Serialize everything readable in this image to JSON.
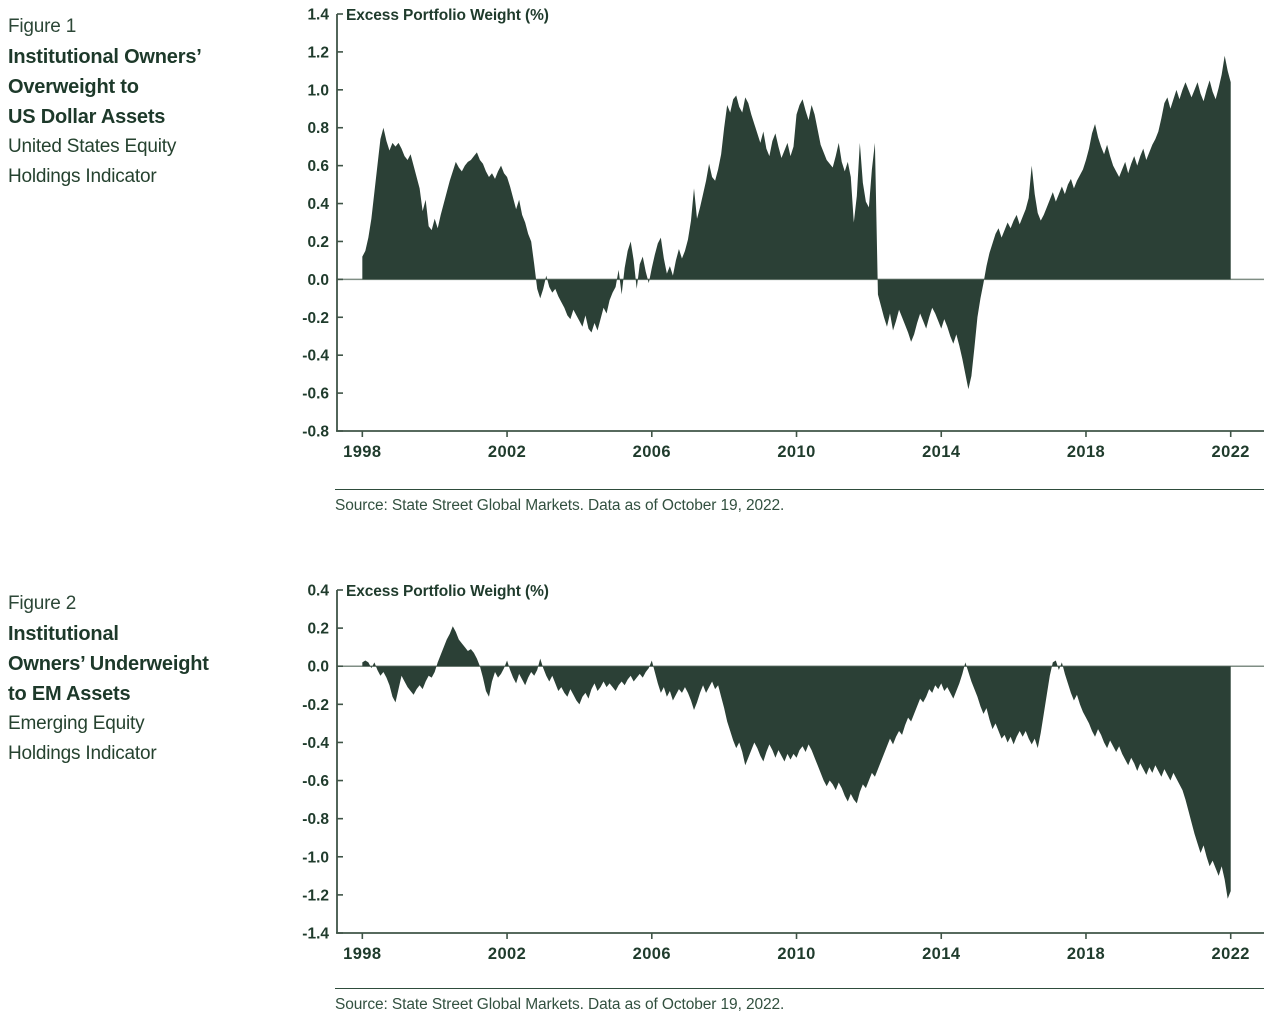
{
  "colors": {
    "ink": "#1f3b2c",
    "area_fill": "#2b4036",
    "zero_line": "#7f8e84",
    "axis_line": "#3f5447",
    "separator": "#2e4c3b"
  },
  "figure1": {
    "label": "Figure 1",
    "title_lines": [
      "Institutional Owners’",
      "Overweight to",
      "US Dollar Assets"
    ],
    "subtitle_lines": [
      "United States Equity",
      "Holdings Indicator"
    ],
    "source": "Source: State Street Global Markets. Data as of October 19, 2022.",
    "chart_data": {
      "type": "area",
      "title": "Excess Portfolio Weight (%)",
      "xlabel": "",
      "ylabel": "Excess Portfolio Weight (%)",
      "ylim": [
        -0.8,
        1.4
      ],
      "ytick_step": 0.2,
      "xlim": [
        1997.3,
        2022.92
      ],
      "xticks": [
        1998,
        2002,
        2006,
        2010,
        2014,
        2018,
        2022
      ],
      "grid": false,
      "legend": "none",
      "x_start": 1998.0,
      "x_step": 0.08333,
      "values": [
        0.12,
        0.15,
        0.22,
        0.32,
        0.46,
        0.6,
        0.74,
        0.8,
        0.73,
        0.68,
        0.72,
        0.7,
        0.72,
        0.69,
        0.65,
        0.63,
        0.66,
        0.6,
        0.54,
        0.48,
        0.36,
        0.42,
        0.28,
        0.26,
        0.32,
        0.27,
        0.34,
        0.4,
        0.46,
        0.52,
        0.57,
        0.62,
        0.59,
        0.57,
        0.6,
        0.62,
        0.63,
        0.65,
        0.67,
        0.63,
        0.61,
        0.57,
        0.54,
        0.56,
        0.53,
        0.57,
        0.6,
        0.56,
        0.54,
        0.49,
        0.43,
        0.37,
        0.42,
        0.34,
        0.3,
        0.24,
        0.2,
        0.08,
        -0.05,
        -0.1,
        -0.05,
        0.02,
        -0.04,
        -0.07,
        -0.05,
        -0.09,
        -0.12,
        -0.15,
        -0.19,
        -0.21,
        -0.16,
        -0.19,
        -0.22,
        -0.25,
        -0.19,
        -0.26,
        -0.28,
        -0.23,
        -0.27,
        -0.21,
        -0.15,
        -0.18,
        -0.11,
        -0.07,
        -0.04,
        0.05,
        -0.08,
        0.06,
        0.15,
        0.2,
        0.1,
        -0.05,
        0.08,
        0.12,
        0.04,
        -0.02,
        0.06,
        0.13,
        0.19,
        0.22,
        0.11,
        0.03,
        0.07,
        0.02,
        0.1,
        0.16,
        0.11,
        0.15,
        0.21,
        0.31,
        0.48,
        0.32,
        0.38,
        0.45,
        0.52,
        0.61,
        0.54,
        0.52,
        0.58,
        0.66,
        0.8,
        0.92,
        0.88,
        0.95,
        0.97,
        0.91,
        0.88,
        0.96,
        0.93,
        0.87,
        0.82,
        0.77,
        0.72,
        0.78,
        0.69,
        0.65,
        0.73,
        0.77,
        0.7,
        0.64,
        0.68,
        0.72,
        0.65,
        0.7,
        0.87,
        0.92,
        0.95,
        0.89,
        0.84,
        0.92,
        0.87,
        0.79,
        0.71,
        0.67,
        0.63,
        0.61,
        0.59,
        0.65,
        0.72,
        0.62,
        0.57,
        0.62,
        0.54,
        0.3,
        0.44,
        0.72,
        0.51,
        0.41,
        0.38,
        0.58,
        0.72,
        -0.08,
        -0.14,
        -0.2,
        -0.25,
        -0.18,
        -0.27,
        -0.22,
        -0.16,
        -0.2,
        -0.24,
        -0.28,
        -0.33,
        -0.29,
        -0.23,
        -0.18,
        -0.22,
        -0.26,
        -0.2,
        -0.15,
        -0.18,
        -0.22,
        -0.26,
        -0.21,
        -0.25,
        -0.3,
        -0.34,
        -0.29,
        -0.35,
        -0.42,
        -0.5,
        -0.58,
        -0.51,
        -0.36,
        -0.2,
        -0.1,
        -0.02,
        0.07,
        0.14,
        0.19,
        0.24,
        0.27,
        0.22,
        0.26,
        0.3,
        0.27,
        0.31,
        0.34,
        0.29,
        0.33,
        0.37,
        0.43,
        0.6,
        0.45,
        0.35,
        0.31,
        0.34,
        0.38,
        0.42,
        0.46,
        0.41,
        0.45,
        0.49,
        0.45,
        0.5,
        0.53,
        0.48,
        0.52,
        0.55,
        0.58,
        0.63,
        0.69,
        0.77,
        0.82,
        0.75,
        0.7,
        0.66,
        0.71,
        0.65,
        0.6,
        0.57,
        0.54,
        0.58,
        0.62,
        0.56,
        0.61,
        0.65,
        0.6,
        0.65,
        0.69,
        0.63,
        0.67,
        0.71,
        0.74,
        0.78,
        0.85,
        0.93,
        0.96,
        0.9,
        0.95,
        1.0,
        0.95,
        1.0,
        1.04,
        1.0,
        0.96,
        1.0,
        1.04,
        0.98,
        0.94,
        1.0,
        1.05,
        0.99,
        0.95,
        1.01,
        1.08,
        1.18,
        1.1,
        1.04
      ]
    }
  },
  "figure2": {
    "label": "Figure 2",
    "title_lines": [
      "Institutional",
      "Owners’ Underweight",
      "to EM Assets"
    ],
    "subtitle_lines": [
      "Emerging Equity",
      "Holdings Indicator"
    ],
    "source": "Source: State Street Global Markets. Data as of October 19, 2022.",
    "chart_data": {
      "type": "area",
      "title": "Excess Portfolio Weight (%)",
      "xlabel": "",
      "ylabel": "Excess Portfolio Weight (%)",
      "ylim": [
        -1.4,
        0.4
      ],
      "ytick_step": 0.2,
      "xlim": [
        1997.3,
        2022.92
      ],
      "xticks": [
        1998,
        2002,
        2006,
        2010,
        2014,
        2018,
        2022
      ],
      "grid": false,
      "legend": "none",
      "x_start": 1998.0,
      "x_step": 0.08333,
      "values": [
        0.02,
        0.03,
        0.02,
        -0.01,
        0.02,
        -0.02,
        -0.05,
        -0.03,
        -0.06,
        -0.1,
        -0.16,
        -0.19,
        -0.12,
        -0.05,
        -0.08,
        -0.11,
        -0.13,
        -0.15,
        -0.12,
        -0.1,
        -0.12,
        -0.08,
        -0.05,
        -0.06,
        -0.03,
        0.02,
        0.06,
        0.1,
        0.14,
        0.17,
        0.21,
        0.18,
        0.14,
        0.12,
        0.1,
        0.08,
        0.09,
        0.07,
        0.04,
        0.0,
        -0.06,
        -0.13,
        -0.16,
        -0.08,
        -0.03,
        -0.06,
        -0.04,
        -0.01,
        0.03,
        -0.02,
        -0.06,
        -0.09,
        -0.04,
        -0.07,
        -0.1,
        -0.06,
        -0.03,
        -0.05,
        -0.02,
        0.04,
        -0.01,
        -0.05,
        -0.08,
        -0.05,
        -0.09,
        -0.13,
        -0.11,
        -0.14,
        -0.16,
        -0.12,
        -0.15,
        -0.18,
        -0.2,
        -0.16,
        -0.14,
        -0.17,
        -0.12,
        -0.09,
        -0.13,
        -0.11,
        -0.08,
        -0.11,
        -0.09,
        -0.11,
        -0.13,
        -0.1,
        -0.08,
        -0.1,
        -0.07,
        -0.05,
        -0.08,
        -0.06,
        -0.04,
        -0.06,
        -0.03,
        -0.01,
        0.03,
        -0.03,
        -0.09,
        -0.14,
        -0.11,
        -0.16,
        -0.13,
        -0.18,
        -0.15,
        -0.12,
        -0.14,
        -0.11,
        -0.14,
        -0.18,
        -0.23,
        -0.19,
        -0.14,
        -0.1,
        -0.14,
        -0.11,
        -0.08,
        -0.12,
        -0.1,
        -0.16,
        -0.22,
        -0.29,
        -0.34,
        -0.39,
        -0.43,
        -0.4,
        -0.45,
        -0.52,
        -0.48,
        -0.44,
        -0.4,
        -0.43,
        -0.47,
        -0.5,
        -0.45,
        -0.41,
        -0.44,
        -0.48,
        -0.44,
        -0.47,
        -0.5,
        -0.46,
        -0.49,
        -0.46,
        -0.48,
        -0.44,
        -0.42,
        -0.45,
        -0.41,
        -0.44,
        -0.48,
        -0.52,
        -0.56,
        -0.6,
        -0.63,
        -0.6,
        -0.62,
        -0.65,
        -0.61,
        -0.64,
        -0.68,
        -0.71,
        -0.67,
        -0.7,
        -0.72,
        -0.66,
        -0.62,
        -0.64,
        -0.6,
        -0.56,
        -0.58,
        -0.54,
        -0.5,
        -0.46,
        -0.42,
        -0.38,
        -0.41,
        -0.37,
        -0.34,
        -0.36,
        -0.31,
        -0.27,
        -0.29,
        -0.25,
        -0.21,
        -0.17,
        -0.19,
        -0.16,
        -0.12,
        -0.14,
        -0.1,
        -0.12,
        -0.09,
        -0.13,
        -0.11,
        -0.14,
        -0.17,
        -0.13,
        -0.09,
        -0.04,
        0.02,
        -0.03,
        -0.08,
        -0.12,
        -0.16,
        -0.21,
        -0.25,
        -0.22,
        -0.28,
        -0.33,
        -0.3,
        -0.34,
        -0.38,
        -0.36,
        -0.4,
        -0.37,
        -0.41,
        -0.37,
        -0.34,
        -0.37,
        -0.34,
        -0.38,
        -0.41,
        -0.38,
        -0.43,
        -0.35,
        -0.25,
        -0.15,
        -0.05,
        0.02,
        0.03,
        -0.02,
        0.02,
        -0.04,
        -0.09,
        -0.14,
        -0.18,
        -0.15,
        -0.2,
        -0.24,
        -0.27,
        -0.3,
        -0.34,
        -0.37,
        -0.33,
        -0.36,
        -0.4,
        -0.43,
        -0.39,
        -0.42,
        -0.45,
        -0.42,
        -0.46,
        -0.49,
        -0.52,
        -0.48,
        -0.51,
        -0.55,
        -0.51,
        -0.54,
        -0.57,
        -0.53,
        -0.56,
        -0.52,
        -0.55,
        -0.58,
        -0.54,
        -0.57,
        -0.6,
        -0.56,
        -0.59,
        -0.62,
        -0.65,
        -0.7,
        -0.76,
        -0.82,
        -0.88,
        -0.93,
        -0.98,
        -0.94,
        -1.0,
        -1.05,
        -1.02,
        -1.06,
        -1.1,
        -1.05,
        -1.12,
        -1.22,
        -1.18
      ]
    }
  }
}
